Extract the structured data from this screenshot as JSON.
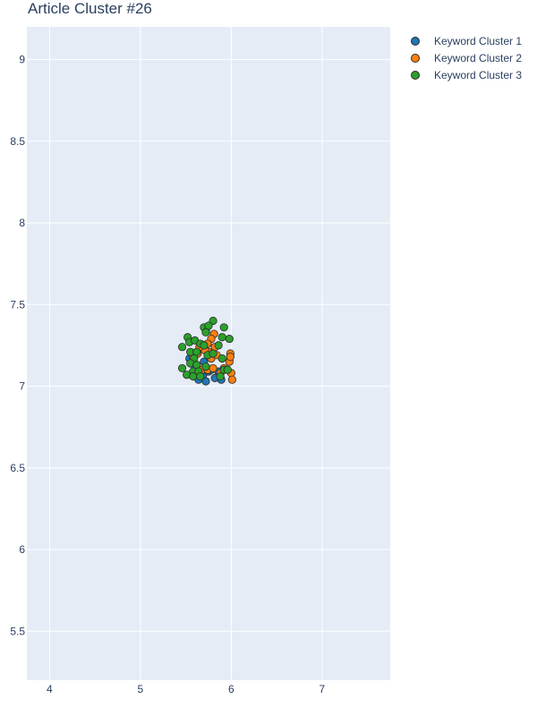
{
  "chart_data": {
    "type": "scatter",
    "title": "Article Cluster #26",
    "xlabel": "",
    "ylabel": "",
    "xlim": [
      3.75,
      7.75
    ],
    "ylim": [
      5.2,
      9.2
    ],
    "xticks": [
      "4",
      "5",
      "6",
      "7"
    ],
    "yticks": [
      "5.5",
      "6",
      "6.5",
      "7",
      "7.5",
      "8",
      "8.5",
      "9"
    ],
    "grid": true,
    "legend_position": "top-right",
    "series": [
      {
        "name": "Keyword Cluster 1",
        "color": "#1f77b4",
        "points": [
          [
            5.64,
            7.04
          ],
          [
            5.72,
            7.03
          ],
          [
            5.69,
            7.07
          ],
          [
            5.75,
            7.09
          ],
          [
            5.6,
            7.12
          ],
          [
            5.54,
            7.17
          ],
          [
            5.82,
            7.05
          ],
          [
            5.89,
            7.04
          ],
          [
            5.78,
            7.1
          ],
          [
            5.66,
            7.09
          ],
          [
            5.58,
            7.08
          ],
          [
            5.7,
            7.15
          ],
          [
            5.86,
            7.09
          ]
        ]
      },
      {
        "name": "Keyword Cluster 2",
        "color": "#ff7f0e",
        "points": [
          [
            5.99,
            7.2
          ],
          [
            5.98,
            7.15
          ],
          [
            6.0,
            7.08
          ],
          [
            6.01,
            7.04
          ],
          [
            5.99,
            7.18
          ],
          [
            5.81,
            7.32
          ],
          [
            5.78,
            7.29
          ],
          [
            5.82,
            7.24
          ],
          [
            5.75,
            7.21
          ],
          [
            5.78,
            7.17
          ],
          [
            5.68,
            7.1
          ],
          [
            5.74,
            7.1
          ],
          [
            5.8,
            7.11
          ],
          [
            5.84,
            7.19
          ],
          [
            5.88,
            7.08
          ],
          [
            5.71,
            7.22
          ],
          [
            5.65,
            7.24
          ],
          [
            5.74,
            7.26
          ],
          [
            5.72,
            7.34
          ],
          [
            5.63,
            7.2
          ],
          [
            5.58,
            7.18
          ],
          [
            5.92,
            7.11
          ]
        ]
      },
      {
        "name": "Keyword Cluster 3",
        "color": "#2ca02c",
        "points": [
          [
            5.8,
            7.4
          ],
          [
            5.7,
            7.36
          ],
          [
            5.75,
            7.37
          ],
          [
            5.92,
            7.36
          ],
          [
            5.72,
            7.33
          ],
          [
            5.9,
            7.3
          ],
          [
            5.98,
            7.29
          ],
          [
            5.52,
            7.3
          ],
          [
            5.54,
            7.27
          ],
          [
            5.6,
            7.28
          ],
          [
            5.66,
            7.26
          ],
          [
            5.7,
            7.25
          ],
          [
            5.86,
            7.25
          ],
          [
            5.46,
            7.24
          ],
          [
            5.55,
            7.21
          ],
          [
            5.62,
            7.21
          ],
          [
            5.59,
            7.17
          ],
          [
            5.74,
            7.19
          ],
          [
            5.8,
            7.2
          ],
          [
            5.9,
            7.17
          ],
          [
            5.55,
            7.14
          ],
          [
            5.46,
            7.11
          ],
          [
            5.62,
            7.13
          ],
          [
            5.58,
            7.09
          ],
          [
            5.64,
            7.09
          ],
          [
            5.92,
            7.1
          ],
          [
            5.96,
            7.1
          ],
          [
            5.51,
            7.07
          ],
          [
            5.58,
            7.06
          ],
          [
            5.66,
            7.06
          ],
          [
            5.88,
            7.06
          ],
          [
            5.72,
            7.12
          ]
        ]
      }
    ]
  }
}
